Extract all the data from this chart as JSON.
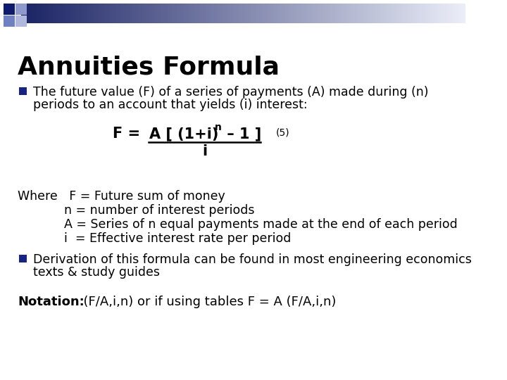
{
  "title": "Annuities Formula",
  "bg_color": "#ffffff",
  "title_color": "#000000",
  "title_fontsize": 26,
  "bullet_color": "#1a237e",
  "bullet1_line1": "The future value (F) of a series of payments (A) made during (n)",
  "bullet1_line2": "periods to an account that yields (i) interest:",
  "where_lines": [
    "Where   F = Future sum of money",
    "            n = number of interest periods",
    "            A = Series of n equal payments made at the end of each period",
    "            i  = Effective interest rate per period"
  ],
  "bullet2_line1": "Derivation of this formula can be found in most engineering economics",
  "bullet2_line2": "texts & study guides",
  "notation_bold": "Notation:",
  "notation_rest": "  (F/A,i,n) or if using tables F = A (F/A,i,n)",
  "text_color": "#000000",
  "body_fontsize": 12.5
}
